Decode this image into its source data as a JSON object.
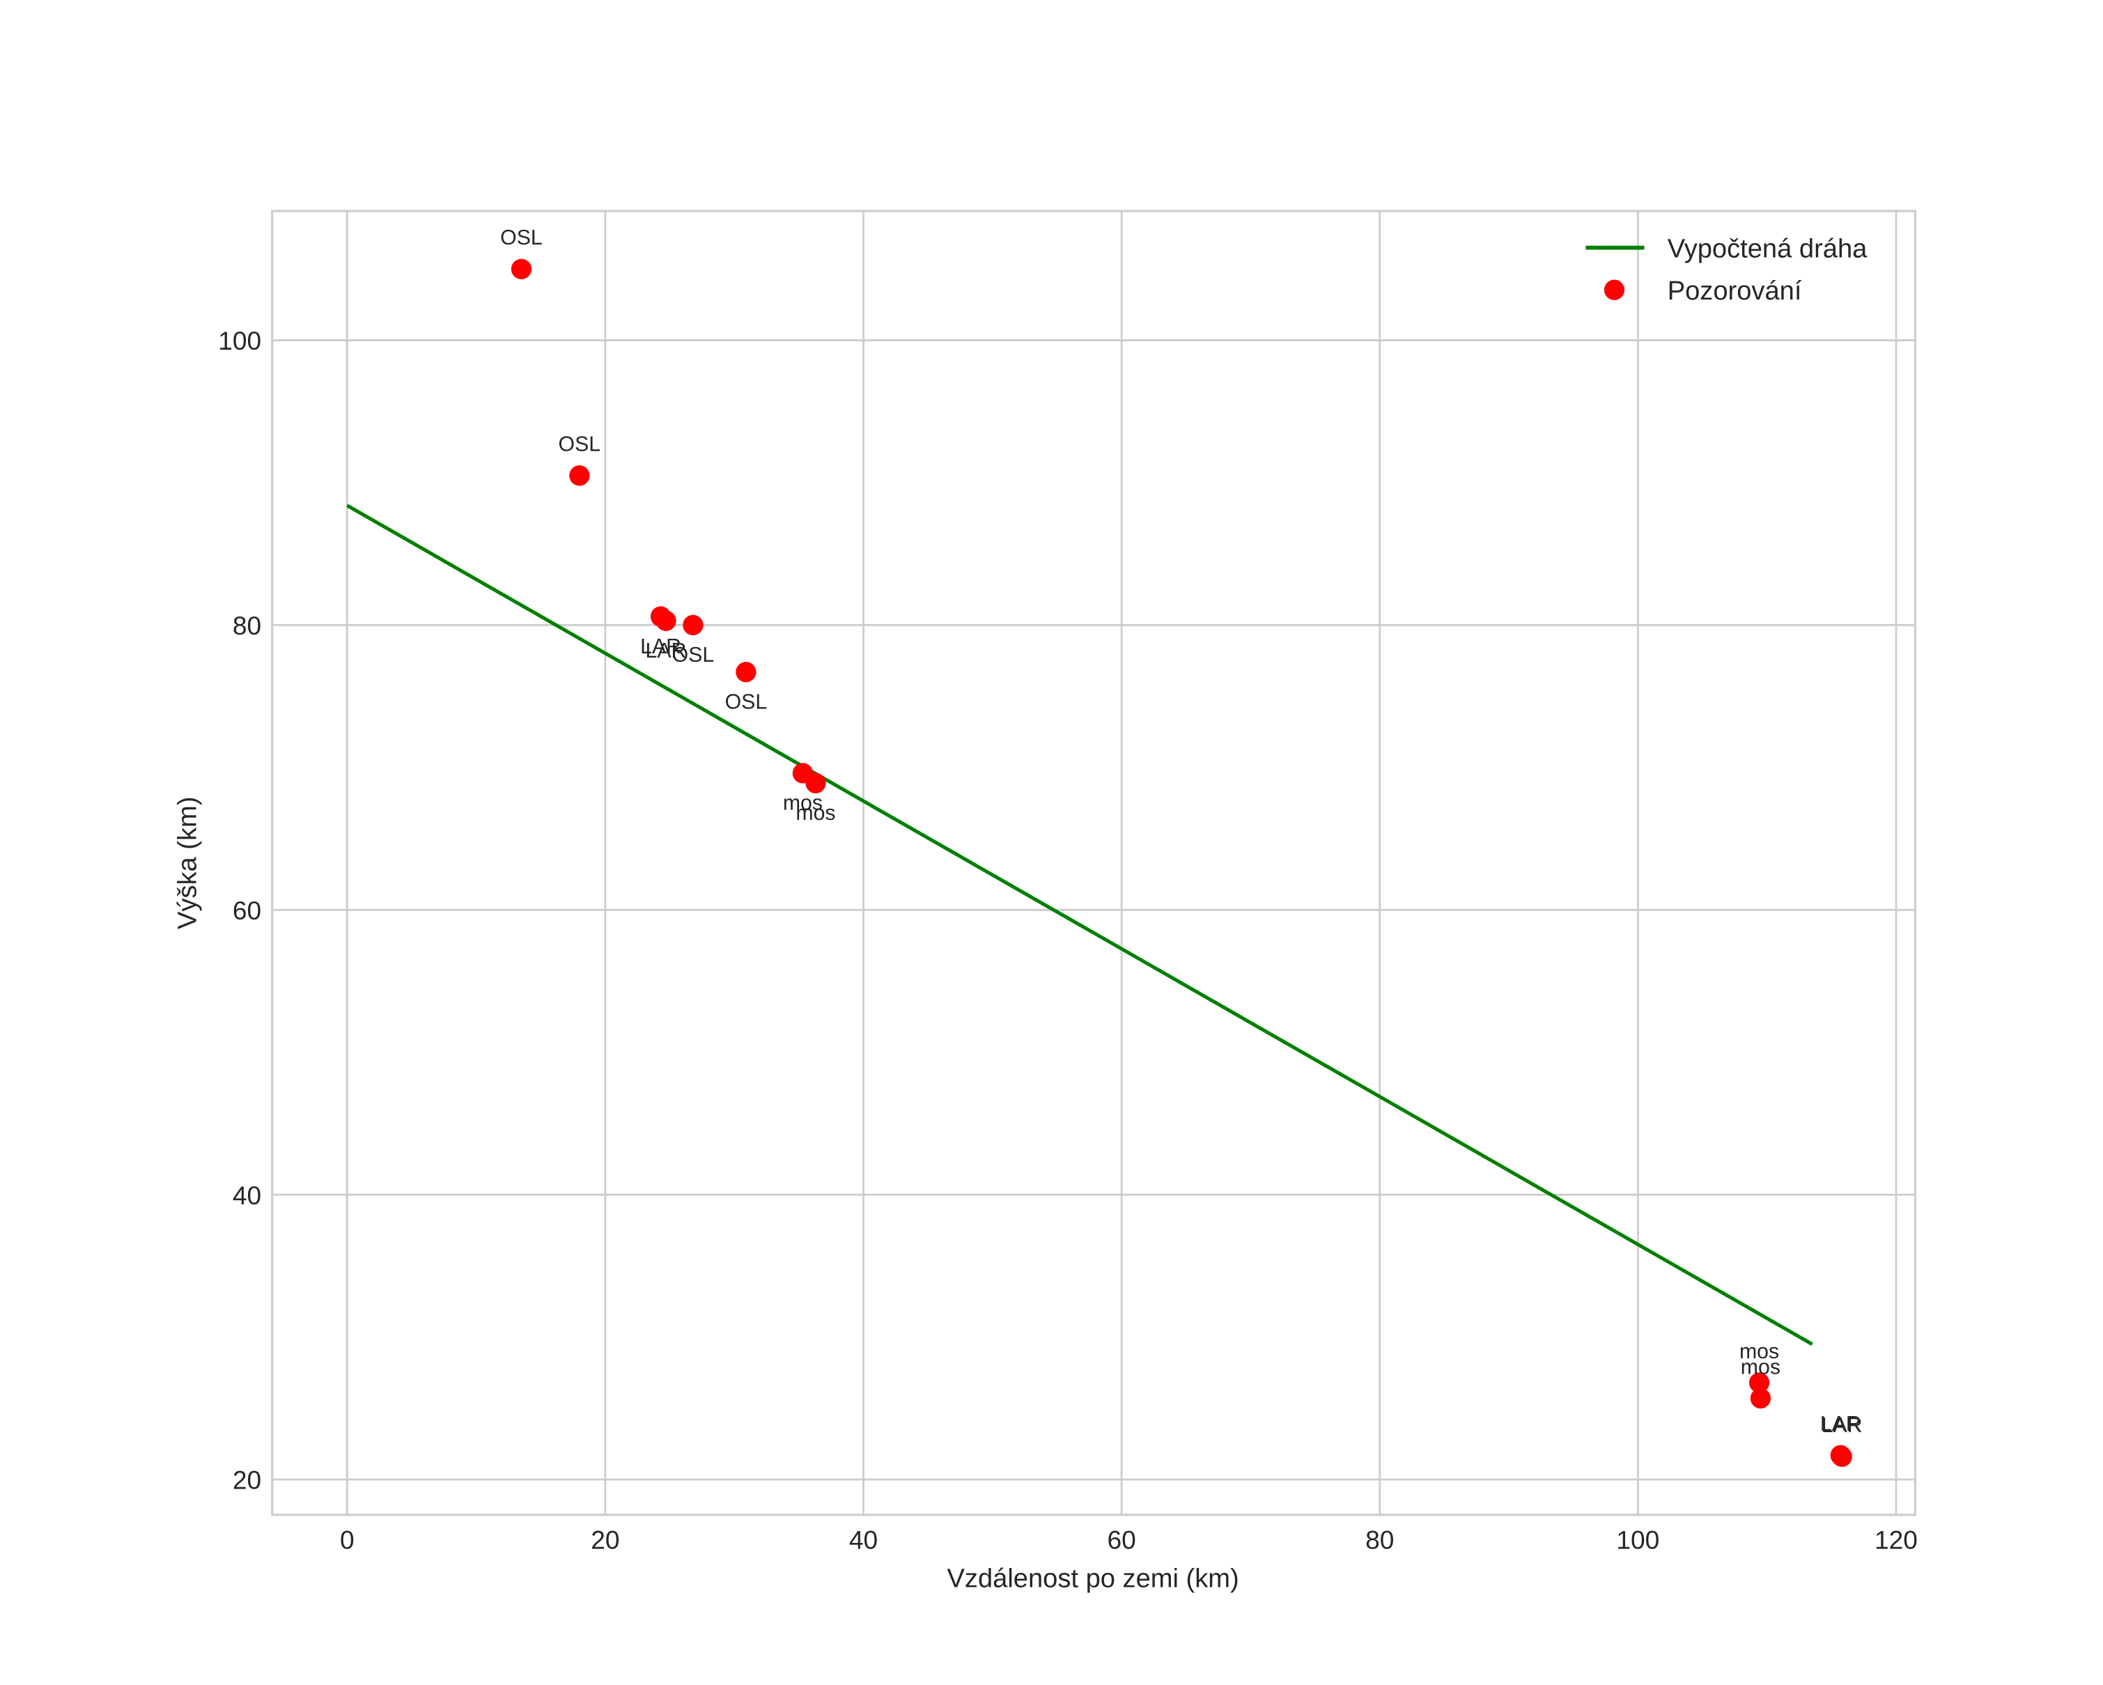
{
  "chart_data": {
    "type": "scatter",
    "title": "",
    "xlabel": "Vzdálenost po zemi (km)",
    "ylabel": "Výška (km)",
    "xlim": [
      -5.8,
      121.5
    ],
    "ylim": [
      17.5,
      109.1
    ],
    "xticks": [
      0,
      20,
      40,
      60,
      80,
      100,
      120
    ],
    "yticks": [
      20,
      40,
      60,
      80,
      100
    ],
    "grid": true,
    "legend_position": "upper right",
    "legend": [
      "Vypočtená dráha",
      "Pozorování"
    ],
    "series": [
      {
        "name": "Vypočtená dráha",
        "type": "line",
        "color": "#008000",
        "x": [
          0,
          113.5
        ],
        "y": [
          88.4,
          29.5
        ]
      },
      {
        "name": "Pozorování",
        "type": "scatter",
        "color": "#ff0000",
        "points": [
          {
            "x": 13.5,
            "y": 105.0,
            "label": "OSL",
            "label_pos": "above"
          },
          {
            "x": 18.0,
            "y": 90.5,
            "label": "OSL",
            "label_pos": "above"
          },
          {
            "x": 24.3,
            "y": 80.6,
            "label": "LAR",
            "label_pos": "below"
          },
          {
            "x": 24.7,
            "y": 80.3,
            "label": "LAR",
            "label_pos": "below"
          },
          {
            "x": 26.8,
            "y": 80.0,
            "label": "OSL",
            "label_pos": "below"
          },
          {
            "x": 30.9,
            "y": 76.7,
            "label": "OSL",
            "label_pos": "below"
          },
          {
            "x": 35.3,
            "y": 69.6,
            "label": "mos",
            "label_pos": "below"
          },
          {
            "x": 36.3,
            "y": 68.9,
            "label": "mos",
            "label_pos": "below"
          },
          {
            "x": 109.4,
            "y": 26.8,
            "label": "mos",
            "label_pos": "above"
          },
          {
            "x": 109.5,
            "y": 25.7,
            "label": "mos",
            "label_pos": "above"
          },
          {
            "x": 115.7,
            "y": 21.7,
            "label": "LAR",
            "label_pos": "above"
          },
          {
            "x": 115.8,
            "y": 21.6,
            "label": "LAR",
            "label_pos": "above"
          }
        ]
      }
    ]
  },
  "axes": {
    "xlabel": "Vzdálenost po zemi (km)",
    "ylabel": "Výška (km)",
    "xtick_labels": [
      "0",
      "20",
      "40",
      "60",
      "80",
      "100",
      "120"
    ],
    "ytick_labels": [
      "20",
      "40",
      "60",
      "80",
      "100"
    ]
  },
  "legend": {
    "line_label": "Vypočtená dráha",
    "marker_label": "Pozorování"
  },
  "colors": {
    "line": "#008000",
    "marker": "#ff0000",
    "grid": "#cccccc",
    "text": "#262626"
  }
}
